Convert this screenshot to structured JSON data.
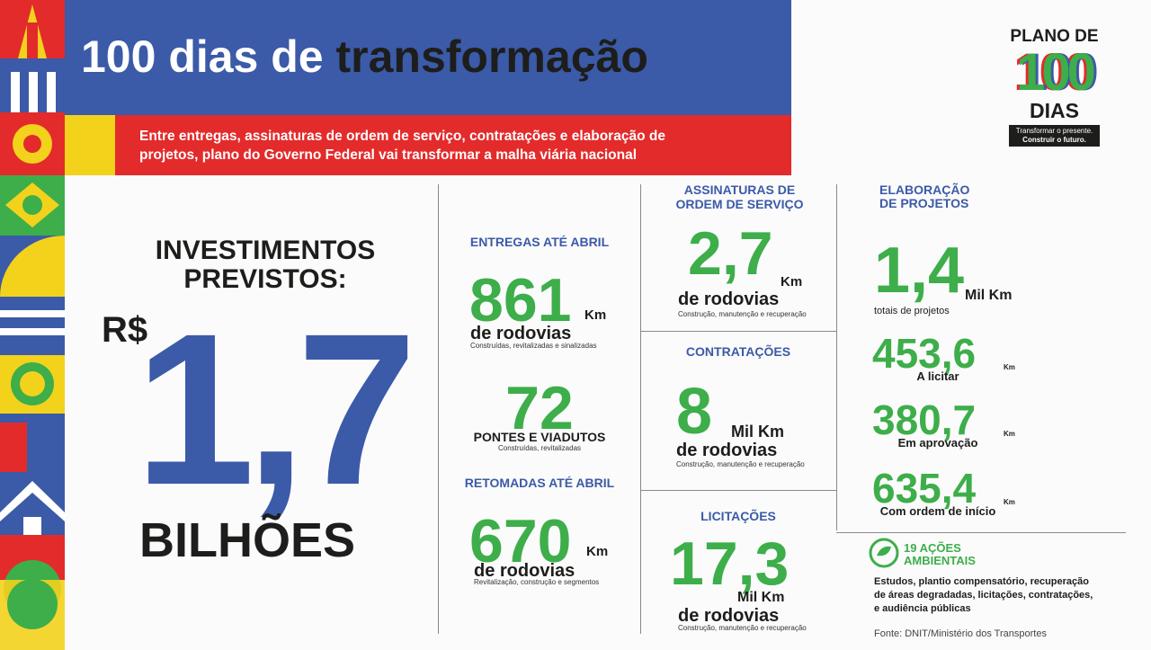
{
  "header": {
    "title_light": "100 dias de",
    "title_bold": "transformação",
    "subtitle_line1": "Entre entregas, assinaturas de ordem de serviço, contratações e elaboração de",
    "subtitle_line2": "projetos, plano do Governo Federal vai transformar a malha viária nacional"
  },
  "logo": {
    "line1": "PLANO DE",
    "number": "100",
    "line2": "DIAS",
    "tagline1": "Transformar o presente.",
    "tagline2": "Construir o futuro."
  },
  "investment": {
    "label_line1": "INVESTIMENTOS",
    "label_line2": "PREVISTOS:",
    "currency": "R$",
    "amount": "1,7",
    "unit": "BILHÕES"
  },
  "entregas": {
    "title": "ENTREGAS ATÉ ABRIL",
    "value": "861",
    "unit": "Km",
    "label": "de rodovias",
    "note": "Construídas, revitalizadas e sinalizadas"
  },
  "pontes": {
    "value": "72",
    "label": "PONTES E VIADUTOS",
    "note": "Construídas, revitalizadas"
  },
  "retomadas": {
    "title": "RETOMADAS ATÉ ABRIL",
    "value": "670",
    "unit": "Km",
    "label": "de rodovias",
    "note": "Revitalização, construção e segmentos"
  },
  "assinaturas": {
    "title_line1": "ASSINATURAS DE",
    "title_line2": "ORDEM DE SERVIÇO",
    "value": "2,7",
    "unit": "Km",
    "label": "de rodovias",
    "note": "Construção, manutenção e recuperação"
  },
  "contratacoes": {
    "title": "CONTRATAÇÕES",
    "value": "8",
    "unit": "Mil Km",
    "label": "de rodovias",
    "note": "Construção, manutenção e recuperação"
  },
  "licitacoes": {
    "title": "LICITAÇÕES",
    "value": "17,3",
    "unit": "Mil Km",
    "label": "de rodovias",
    "note": "Construção, manutenção e recuperação"
  },
  "projetos": {
    "title_line1": "ELABORAÇÃO",
    "title_line2": "DE PROJETOS",
    "total": {
      "value": "1,4",
      "unit": "Mil Km",
      "label": "totais de projetos"
    },
    "items": [
      {
        "value": "453,6",
        "unit": "Km",
        "label": "A licitar"
      },
      {
        "value": "380,7",
        "unit": "Km",
        "label": "Em aprovação"
      },
      {
        "value": "635,4",
        "unit": "Km",
        "label": "Com ordem de início"
      }
    ]
  },
  "ambientais": {
    "title_line1": "19 AÇÕES",
    "title_line2": "AMBIENTAIS",
    "text_line1": "Estudos, plantio compensatório, recuperação",
    "text_line2": "de áreas degradadas, licitações, contratações,",
    "text_line3": "e audiência públicas"
  },
  "source": "Fonte: DNIT/Ministério dos Transportes"
}
